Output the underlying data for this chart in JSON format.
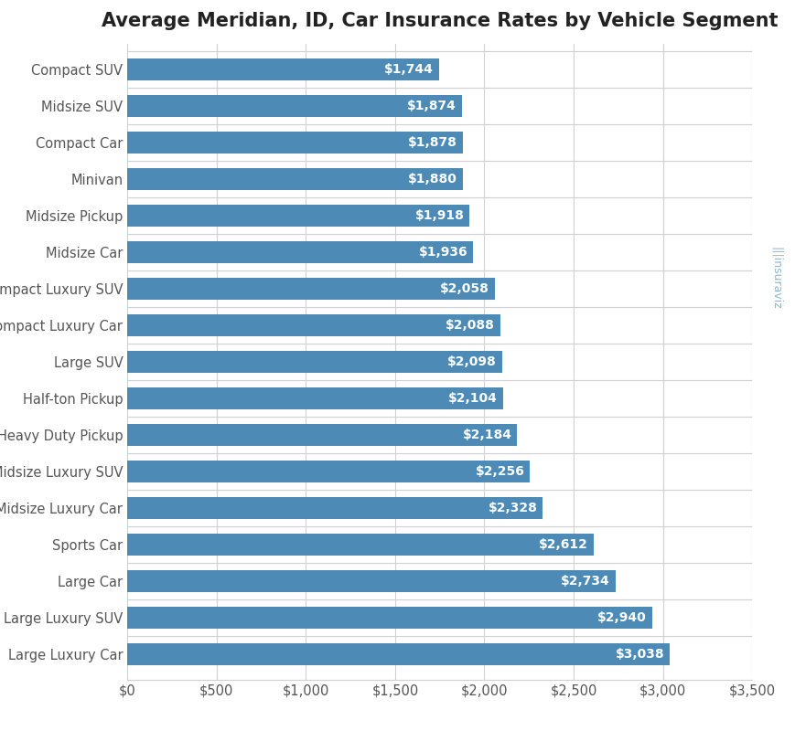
{
  "title": "Average Meridian, ID, Car Insurance Rates by Vehicle Segment",
  "categories": [
    "Compact SUV",
    "Midsize SUV",
    "Compact Car",
    "Minivan",
    "Midsize Pickup",
    "Midsize Car",
    "Compact Luxury SUV",
    "Compact Luxury Car",
    "Large SUV",
    "Half-ton Pickup",
    "Heavy Duty Pickup",
    "Midsize Luxury SUV",
    "Midsize Luxury Car",
    "Sports Car",
    "Large Car",
    "Large Luxury SUV",
    "Large Luxury Car"
  ],
  "values": [
    1744,
    1874,
    1878,
    1880,
    1918,
    1936,
    2058,
    2088,
    2098,
    2104,
    2184,
    2256,
    2328,
    2612,
    2734,
    2940,
    3038
  ],
  "bar_color": "#4d8ab5",
  "background_color": "#ffffff",
  "grid_color": "#d0d0d0",
  "label_color": "#ffffff",
  "xlim": [
    0,
    3500
  ],
  "xticks": [
    0,
    500,
    1000,
    1500,
    2000,
    2500,
    3000,
    3500
  ],
  "bar_height": 0.62,
  "title_fontsize": 15,
  "tick_fontsize": 10.5,
  "label_fontsize": 10,
  "watermark_color": "#7aaac8"
}
